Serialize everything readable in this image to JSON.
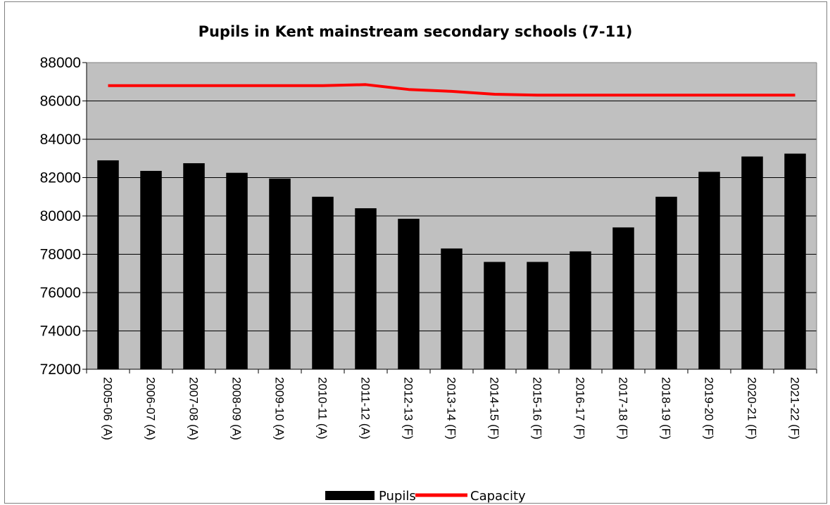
{
  "chart_data": {
    "type": "bar",
    "title": "Pupils in Kent mainstream secondary schools (7-11)",
    "xlabel": "",
    "ylabel": "",
    "ylim": [
      72000,
      88000
    ],
    "yticks": [
      "72000",
      "74000",
      "76000",
      "78000",
      "80000",
      "82000",
      "84000",
      "86000",
      "88000"
    ],
    "grid": true,
    "legend_position": "bottom",
    "categories": [
      "2005-06 (A)",
      "2006-07 (A)",
      "2007-08 (A)",
      "2008-09 (A)",
      "2009-10 (A)",
      "2010-11 (A)",
      "2011-12 (A)",
      "2012-13 (F)",
      "2013-14 (F)",
      "2014-15 (F)",
      "2015-16 (F)",
      "2016-17 (F)",
      "2017-18 (F)",
      "2018-19 (F)",
      "2019-20 (F)",
      "2020-21 (F)",
      "2021-22 (F)"
    ],
    "series": [
      {
        "name": "Pupils",
        "type": "bar",
        "color": "#000000",
        "values": [
          82900,
          82350,
          82750,
          82250,
          81950,
          81000,
          80400,
          79850,
          78300,
          77600,
          77600,
          78150,
          79400,
          81000,
          82300,
          83100,
          83250
        ]
      },
      {
        "name": "Capacity",
        "type": "line",
        "color": "#ff0000",
        "values": [
          86800,
          86800,
          86800,
          86800,
          86800,
          86800,
          86850,
          86600,
          86500,
          86350,
          86300,
          86300,
          86300,
          86300,
          86300,
          86300,
          86300
        ]
      }
    ],
    "plot_background": "#c0c0c0"
  }
}
